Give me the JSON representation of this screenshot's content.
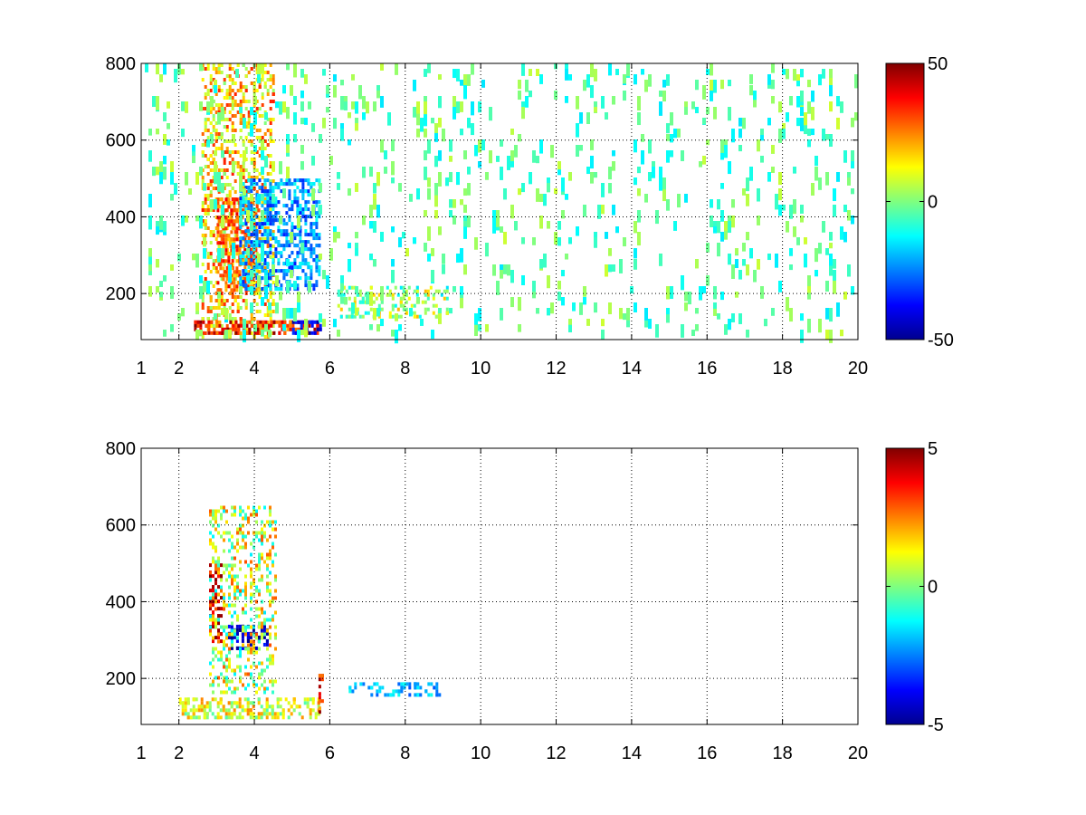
{
  "chart_data": [
    {
      "type": "heatmap",
      "title": "",
      "xlabel": "",
      "ylabel": "",
      "xlim": [
        1,
        20
      ],
      "ylim": [
        80,
        800
      ],
      "xticks": [
        1,
        2,
        4,
        6,
        8,
        10,
        12,
        14,
        16,
        18,
        20
      ],
      "yticks": [
        200,
        400,
        600,
        800
      ],
      "grid": true,
      "colormap": "jet",
      "colorbar": {
        "ticks": [
          -50,
          0,
          50
        ],
        "range": [
          -50,
          50
        ]
      },
      "regions": [
        {
          "x": [
            2.6,
            4.6
          ],
          "y": [
            80,
            800
          ],
          "value_range": [
            0,
            35
          ],
          "density": "high"
        },
        {
          "x": [
            3.0,
            4.2
          ],
          "y": [
            200,
            450
          ],
          "value_range": [
            15,
            40
          ],
          "density": "high"
        },
        {
          "x": [
            3.6,
            5.8
          ],
          "y": [
            200,
            500
          ],
          "value_range": [
            -35,
            -10
          ],
          "density": "high"
        },
        {
          "x": [
            2.4,
            5.8
          ],
          "y": [
            85,
            130
          ],
          "value_range": [
            20,
            50
          ],
          "density": "very high"
        },
        {
          "x": [
            5.0,
            5.8
          ],
          "y": [
            85,
            130
          ],
          "value_range": [
            -50,
            -30
          ],
          "density": "high"
        },
        {
          "x": [
            6.2,
            9.2
          ],
          "y": [
            130,
            220
          ],
          "value_range": [
            -15,
            20
          ],
          "density": "medium"
        },
        {
          "x": [
            1,
            20
          ],
          "y": [
            80,
            800
          ],
          "value_range": [
            -15,
            8
          ],
          "density": "sparse"
        }
      ]
    },
    {
      "type": "heatmap",
      "title": "",
      "xlabel": "",
      "ylabel": "",
      "xlim": [
        1,
        20
      ],
      "ylim": [
        80,
        800
      ],
      "xticks": [
        1,
        2,
        4,
        6,
        8,
        10,
        12,
        14,
        16,
        18,
        20
      ],
      "yticks": [
        200,
        400,
        600,
        800
      ],
      "grid": true,
      "colormap": "jet",
      "colorbar": {
        "ticks": [
          -5,
          0,
          5
        ],
        "range": [
          -5,
          5
        ]
      },
      "regions": [
        {
          "x": [
            2.0,
            5.8
          ],
          "y": [
            85,
            150
          ],
          "value_range": [
            -0.5,
            2.5
          ],
          "density": "high"
        },
        {
          "x": [
            2.8,
            3.2
          ],
          "y": [
            290,
            500
          ],
          "value_range": [
            3.5,
            5
          ],
          "density": "high"
        },
        {
          "x": [
            3.3,
            4.4
          ],
          "y": [
            270,
            340
          ],
          "value_range": [
            -5,
            -3.5
          ],
          "density": "high"
        },
        {
          "x": [
            2.8,
            4.6
          ],
          "y": [
            150,
            650
          ],
          "value_range": [
            -1.5,
            3
          ],
          "density": "medium"
        },
        {
          "x": [
            6.5,
            9.0
          ],
          "y": [
            150,
            190
          ],
          "value_range": [
            -3,
            -1
          ],
          "density": "medium"
        },
        {
          "x": [
            5.7,
            5.9
          ],
          "y": [
            100,
            240
          ],
          "value_range": [
            2,
            5
          ],
          "density": "medium"
        }
      ]
    }
  ]
}
